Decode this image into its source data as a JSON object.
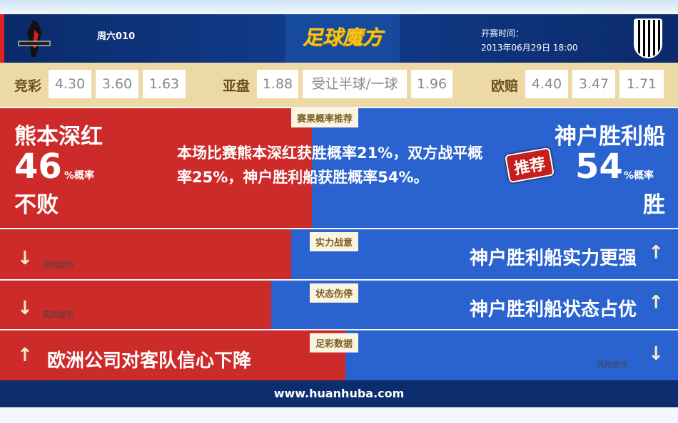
{
  "header": {
    "match_code": "周六010",
    "brand": "足球魔方",
    "time_label": "开赛时间：",
    "time_value": "2013年06月29日 18:00"
  },
  "odds": {
    "jingcai_label": "竞彩",
    "jingcai": [
      "4.30",
      "3.60",
      "1.63"
    ],
    "yapan_label": "亚盘",
    "yapan": [
      "1.88",
      "受让半球/一球",
      "1.96"
    ],
    "oupei_label": "欧赔",
    "oupei": [
      "4.40",
      "3.47",
      "1.71"
    ]
  },
  "result": {
    "tag": "赛果概率推荐",
    "home_team": "熊本深红",
    "home_prob": "46",
    "home_prob_unit": "%概率",
    "home_verdict": "不败",
    "summary": "本场比赛熊本深红获胜概率21%，双方战平概率25%，神户胜利船获胜概率54%。",
    "away_team": "神户胜利船",
    "recommend": "推荐",
    "away_prob": "54",
    "away_prob_unit": "%概率",
    "away_verdict": "胜"
  },
  "rows": [
    {
      "tag": "实力战意",
      "left": "风险提示",
      "right": "神户胜利船实力更强"
    },
    {
      "tag": "状态伤停",
      "left": "风险提示",
      "right": "神户胜利船状态占优"
    },
    {
      "tag": "足彩数据",
      "left": "欧洲公司对客队信心下降",
      "right": "风险提示"
    }
  ],
  "footer": {
    "url": "www.huanhuba.com"
  },
  "colors": {
    "red": "#cd2a2a",
    "blue": "#2a63cf",
    "navy": "#0c2d6e",
    "beige": "#ecd9a6"
  }
}
